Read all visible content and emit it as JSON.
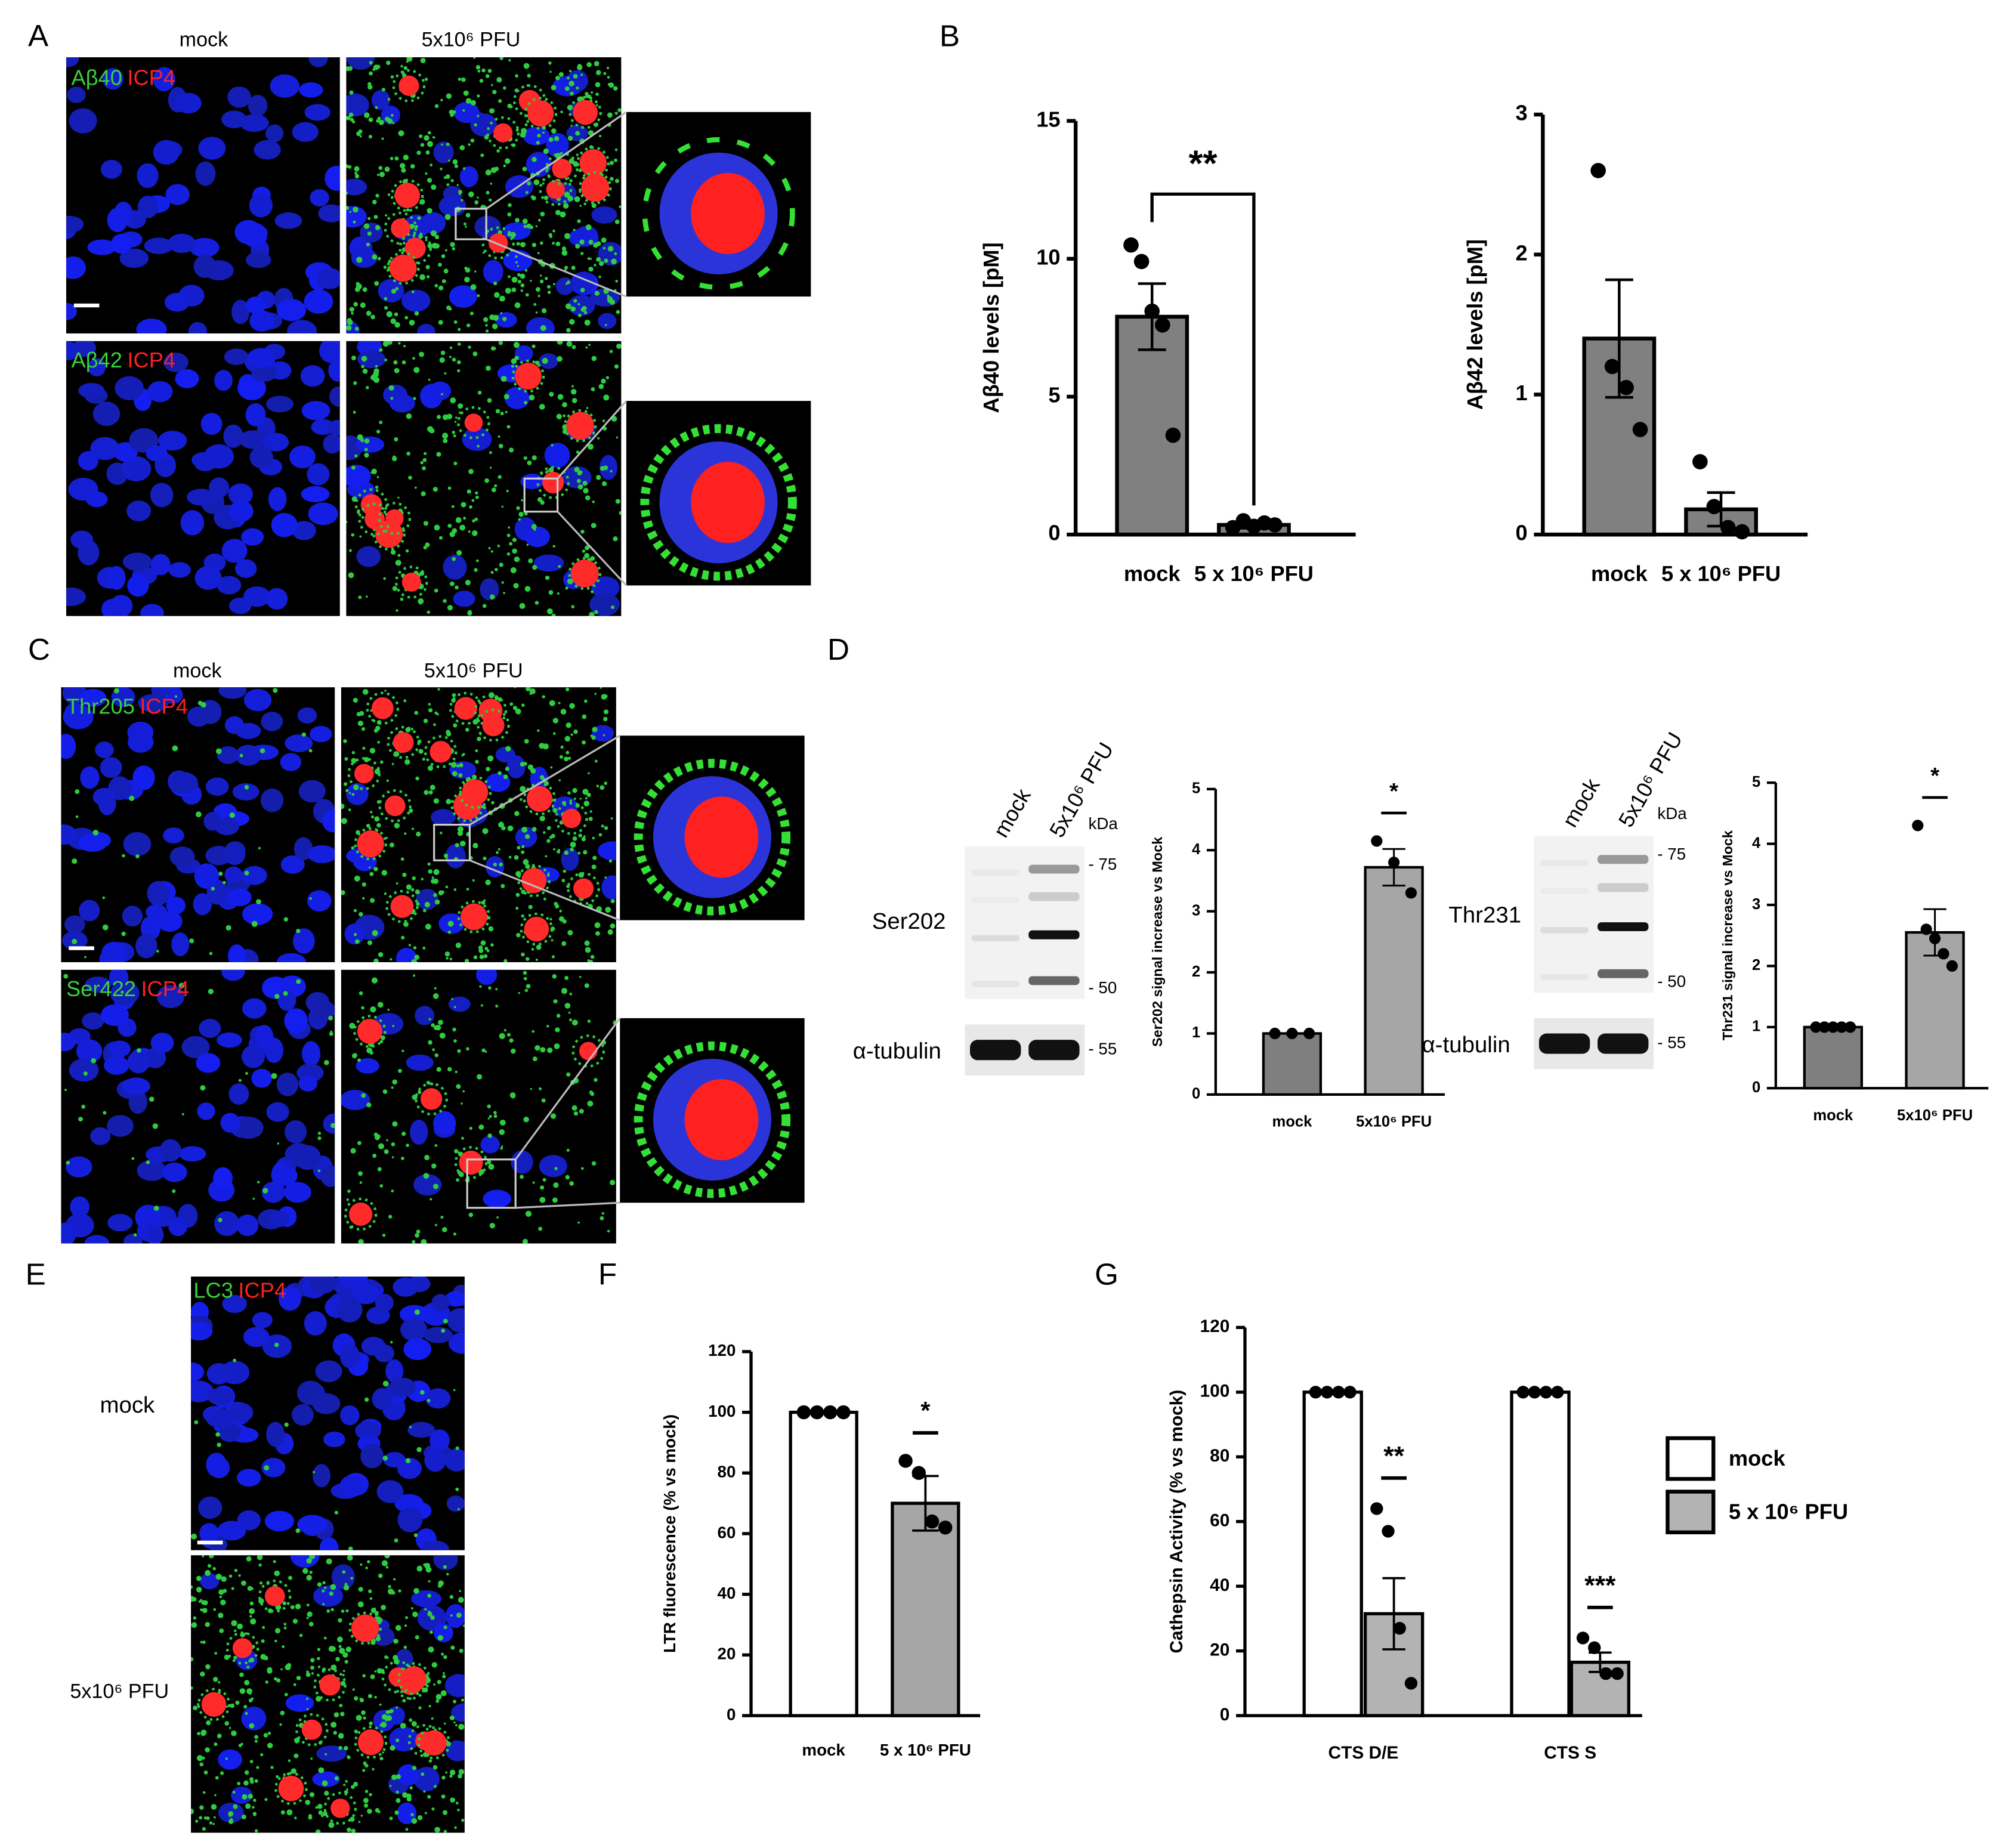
{
  "panel_labels": [
    "A",
    "B",
    "C",
    "D",
    "E",
    "F",
    "G"
  ],
  "panel_a": {
    "columns": [
      "mock",
      "5x10⁶ PFU"
    ],
    "rows": [
      [
        "Aβ40",
        "ICP4"
      ],
      [
        "Aβ42",
        "ICP4"
      ]
    ]
  },
  "panel_c": {
    "columns": [
      "mock",
      "5x10⁶ PFU"
    ],
    "rows": [
      [
        "Thr205",
        "ICP4"
      ],
      [
        "Ser422",
        "ICP4"
      ]
    ]
  },
  "panel_d_blots": [
    {
      "lanes": [
        "mock",
        "5x10⁶ PFU"
      ],
      "unit": "kDa",
      "markers": [
        "- 75",
        "- 50"
      ],
      "protein": "Ser202",
      "loading": "α-tubulin",
      "loading_marker": "- 55"
    },
    {
      "lanes": [
        "mock",
        "5x10⁶ PFU"
      ],
      "unit": "kDa",
      "markers": [
        "- 75",
        "- 50"
      ],
      "protein": "Thr231",
      "loading": "α-tubulin",
      "loading_marker": "- 55"
    }
  ],
  "panel_e": {
    "channels": [
      "LC3",
      "ICP4"
    ],
    "rows": [
      "mock",
      "5x10⁶ PFU"
    ]
  },
  "chart_data": [
    {
      "type": "bar",
      "ylabel": "Aβ40 levels [pM]",
      "categories": [
        "mock",
        "5 x 10⁶ PFU"
      ],
      "values": [
        7.9,
        0.35
      ],
      "errors": [
        1.2,
        0.12
      ],
      "points": [
        [
          10.5,
          9.9,
          8.1,
          7.6,
          3.6
        ],
        [
          0.25,
          0.5,
          0.3,
          0.42,
          0.35
        ]
      ],
      "colors": [
        "#808080",
        "#808080"
      ],
      "ylim": [
        0,
        15
      ],
      "yticks": [
        0,
        5,
        10,
        15
      ],
      "annotation": "**"
    },
    {
      "type": "bar",
      "ylabel": "Aβ42 levels [pM]",
      "categories": [
        "mock",
        "5 x 10⁶ PFU"
      ],
      "values": [
        1.4,
        0.18
      ],
      "errors": [
        0.42,
        0.12
      ],
      "points": [
        [
          2.6,
          1.2,
          1.05,
          0.75
        ],
        [
          0.52,
          0.2,
          0.05,
          0.02
        ]
      ],
      "colors": [
        "#808080",
        "#808080"
      ],
      "ylim": [
        0,
        3
      ],
      "yticks": [
        0,
        1,
        2,
        3
      ]
    },
    {
      "type": "bar",
      "ylabel": "Ser202 signal increase vs Mock",
      "categories": [
        "mock",
        "5x10⁶ PFU"
      ],
      "values": [
        1,
        3.72
      ],
      "errors": [
        0,
        0.3
      ],
      "points": [
        [
          1,
          1,
          1
        ],
        [
          4.15,
          3.8,
          3.3
        ]
      ],
      "colors": [
        "#7f7f7f",
        "#a6a6a6"
      ],
      "ylim": [
        0,
        5
      ],
      "yticks": [
        0,
        1,
        2,
        3,
        4,
        5
      ],
      "annotation": "*"
    },
    {
      "type": "bar",
      "ylabel": "Thr231 signal increase vs Mock",
      "categories": [
        "mock",
        "5x10⁶ PFU"
      ],
      "values": [
        1,
        2.55
      ],
      "errors": [
        0,
        0.38
      ],
      "points": [
        [
          1,
          1,
          1,
          1,
          1
        ],
        [
          4.3,
          2.6,
          2.45,
          2.2,
          2.0
        ]
      ],
      "colors": [
        "#7f7f7f",
        "#a6a6a6"
      ],
      "ylim": [
        0,
        5
      ],
      "yticks": [
        0,
        1,
        2,
        3,
        4,
        5
      ],
      "annotation": "*"
    },
    {
      "type": "bar",
      "ylabel": "LTR fluorescence (% vs mock)",
      "categories": [
        "mock",
        "5 x 10⁶ PFU"
      ],
      "values": [
        100,
        70
      ],
      "errors": [
        0,
        9
      ],
      "points": [
        [
          100,
          100,
          100,
          100
        ],
        [
          84,
          80,
          64,
          62
        ]
      ],
      "colors": [
        "#ffffff",
        "#a6a6a6"
      ],
      "ylim": [
        0,
        120
      ],
      "yticks": [
        0,
        20,
        40,
        60,
        80,
        100,
        120
      ],
      "annotation": "*"
    },
    {
      "type": "grouped_bar",
      "ylabel": "Cathepsin Activity (% vs mock)",
      "categories": [
        "CTS D/E",
        "CTS S"
      ],
      "series": [
        {
          "name": "mock",
          "color": "#ffffff",
          "values": [
            100,
            100
          ],
          "errors": [
            0,
            0
          ],
          "points": [
            [
              100,
              100,
              100,
              100
            ],
            [
              100,
              100,
              100,
              100
            ]
          ]
        },
        {
          "name": "5 x 10⁶ PFU",
          "color": "#b3b3b3",
          "values": [
            31.5,
            16.5
          ],
          "errors": [
            11,
            3
          ],
          "points": [
            [
              64,
              57,
              27,
              10
            ],
            [
              24,
              21,
              13,
              13
            ]
          ]
        }
      ],
      "ylim": [
        0,
        120
      ],
      "yticks": [
        0,
        20,
        40,
        60,
        80,
        100,
        120
      ],
      "annotations": [
        "**",
        "***"
      ]
    }
  ]
}
